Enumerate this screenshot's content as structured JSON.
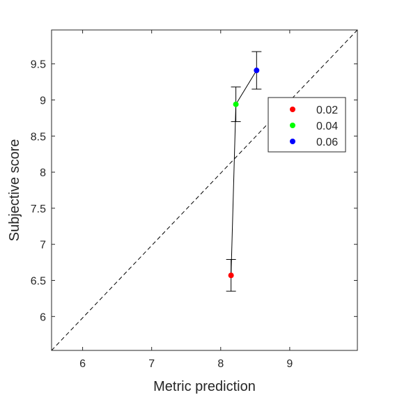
{
  "chart_data": {
    "type": "scatter",
    "xlabel": "Metric prediction",
    "ylabel": "Subjective score",
    "xlim": [
      5.55,
      9.98
    ],
    "ylim": [
      5.53,
      9.97
    ],
    "xticks": [
      6,
      7,
      8,
      9
    ],
    "yticks": [
      6,
      6.5,
      7,
      7.5,
      8,
      8.5,
      9,
      9.5
    ],
    "xtick_labels": [
      "6",
      "7",
      "8",
      "9"
    ],
    "ytick_labels": [
      "6",
      "6.5",
      "7",
      "7.5",
      "8",
      "8.5",
      "9",
      "9.5"
    ],
    "grid": false,
    "legend_position": "right",
    "reference_line": {
      "style": "dashed",
      "from": [
        5.55,
        5.53
      ],
      "to": [
        9.98,
        9.97
      ]
    },
    "connecting_line": true,
    "points": [
      {
        "label": "0.02",
        "x": 8.15,
        "y": 6.57,
        "err_low": 6.35,
        "err_high": 6.79,
        "color": "#ff0000"
      },
      {
        "label": "0.04",
        "x": 8.22,
        "y": 8.94,
        "err_low": 8.7,
        "err_high": 9.18,
        "color": "#00ff00"
      },
      {
        "label": "0.06",
        "x": 8.52,
        "y": 9.41,
        "err_low": 9.15,
        "err_high": 9.67,
        "color": "#0000ff"
      }
    ]
  }
}
